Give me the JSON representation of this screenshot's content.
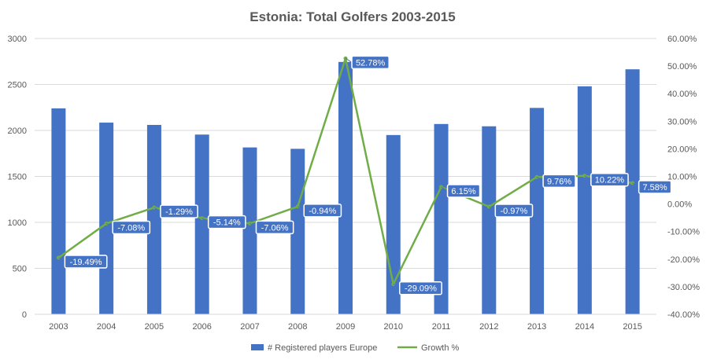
{
  "chart_data": {
    "type": "bar+line",
    "title": "Estonia: Total Golfers 2003-2015",
    "categories": [
      "2003",
      "2004",
      "2005",
      "2006",
      "2007",
      "2008",
      "2009",
      "2010",
      "2011",
      "2012",
      "2013",
      "2014",
      "2015"
    ],
    "series": [
      {
        "name": "# Registered players Europe",
        "type": "bar",
        "axis": "left",
        "color": "#4472C4",
        "values": [
          2240,
          2085,
          2060,
          1955,
          1815,
          1800,
          2745,
          1950,
          2070,
          2045,
          2245,
          2480,
          2665
        ]
      },
      {
        "name": "Growth %",
        "type": "line",
        "axis": "right",
        "color": "#70AD47",
        "values": [
          -19.49,
          -7.08,
          -1.29,
          -5.14,
          -7.06,
          -0.94,
          52.78,
          -29.09,
          6.15,
          -0.97,
          9.76,
          10.22,
          7.58
        ],
        "labels": [
          "-19.49%",
          "-7.08%",
          "-1.29%",
          "-5.14%",
          "-7.06%",
          "-0.94%",
          "52.78%",
          "-29.09%",
          "6.15%",
          "-0.97%",
          "9.76%",
          "10.22%",
          "7.58%"
        ]
      }
    ],
    "y_left": {
      "min": 0,
      "max": 3000,
      "ticks": [
        "0",
        "500",
        "1000",
        "1500",
        "2000",
        "2500",
        "3000"
      ]
    },
    "y_right": {
      "min": -40,
      "max": 60,
      "ticks": [
        "-40.00%",
        "-30.00%",
        "-20.00%",
        "-10.00%",
        "0.00%",
        "10.00%",
        "20.00%",
        "30.00%",
        "40.00%",
        "50.00%",
        "60.00%"
      ]
    },
    "grid": true,
    "legend": "bottom"
  }
}
